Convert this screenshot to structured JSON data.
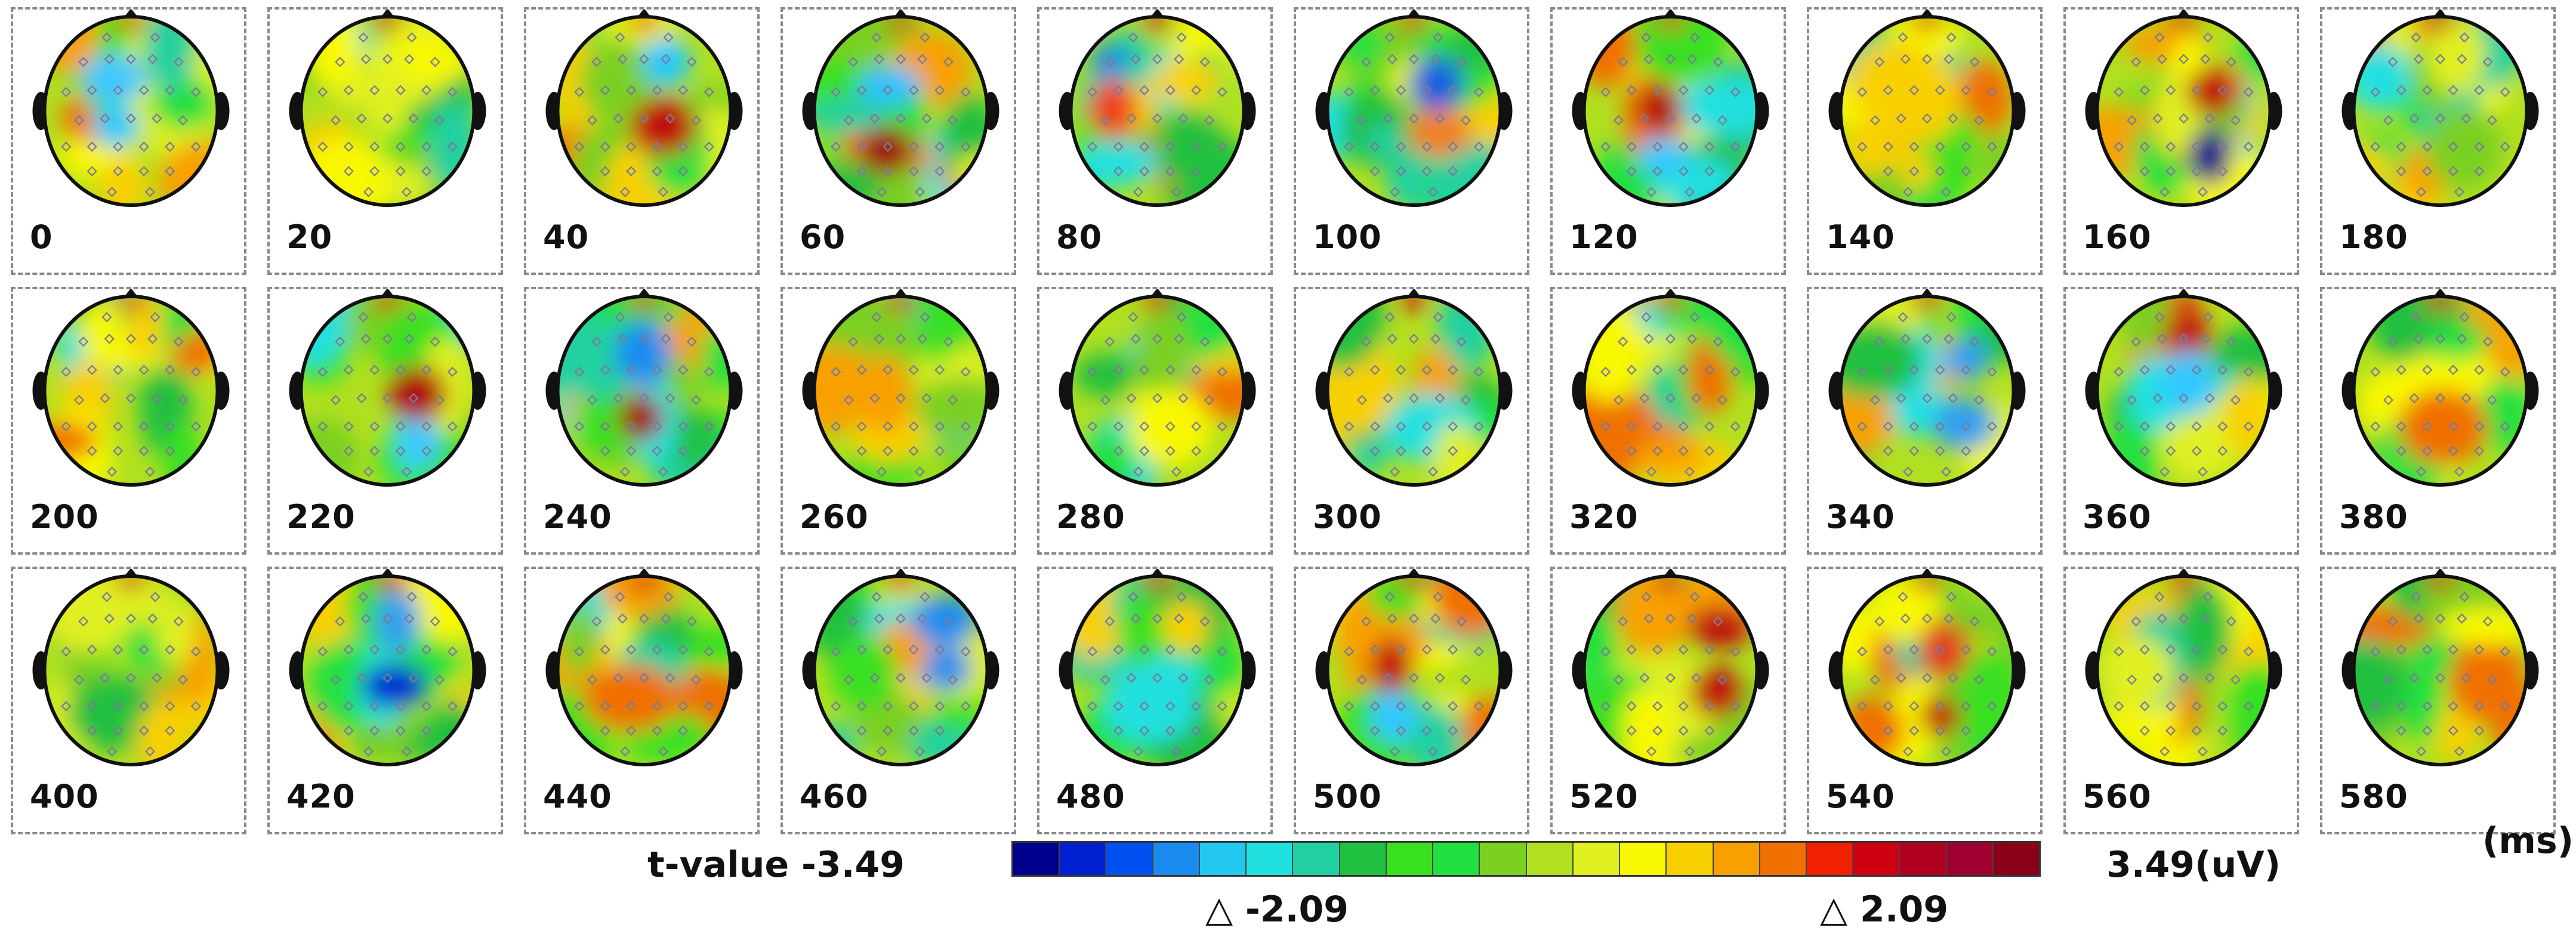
{
  "colors": {
    "background": "#ffffff",
    "head_outline": "#111111",
    "electrode_marker": "#7a7a9a",
    "significant_marker": "#ffffff",
    "colormap": [
      "#00008f",
      "#0020d0",
      "#0050f0",
      "#1a8cf0",
      "#22c8f0",
      "#20e0e0",
      "#20d0a0",
      "#20c040",
      "#38e020",
      "#20e040",
      "#7ad020",
      "#b0e020",
      "#e0f020",
      "#f8f800",
      "#f8d000",
      "#f8a000",
      "#f07000",
      "#f02000",
      "#d00010",
      "#b00020",
      "#a00030",
      "#8a0018"
    ]
  },
  "units": {
    "time_unit": "(ms)"
  },
  "colorbar": {
    "title": "t-value -3.49",
    "max_label": "3.49(uV)",
    "neg_threshold_label": "△ -2.09",
    "pos_threshold_label": "△ 2.09"
  },
  "timepoints": [
    {
      "label": "0"
    },
    {
      "label": "20"
    },
    {
      "label": "40"
    },
    {
      "label": "60"
    },
    {
      "label": "80"
    },
    {
      "label": "100"
    },
    {
      "label": "120"
    },
    {
      "label": "140"
    },
    {
      "label": "160"
    },
    {
      "label": "180"
    },
    {
      "label": "200"
    },
    {
      "label": "220"
    },
    {
      "label": "240"
    },
    {
      "label": "260"
    },
    {
      "label": "280"
    },
    {
      "label": "300"
    },
    {
      "label": "320"
    },
    {
      "label": "340"
    },
    {
      "label": "360"
    },
    {
      "label": "380"
    },
    {
      "label": "400"
    },
    {
      "label": "420"
    },
    {
      "label": "440"
    },
    {
      "label": "460"
    },
    {
      "label": "480"
    },
    {
      "label": "500"
    },
    {
      "label": "520"
    },
    {
      "label": "540"
    },
    {
      "label": "560"
    },
    {
      "label": "580"
    }
  ],
  "topomap_features": {
    "0": [
      [
        "#40c8ff",
        "hotspot-a"
      ],
      [
        "#20c8ff",
        "hotspot-b"
      ]
    ],
    "40": [
      [
        "#c01010",
        "hotspot-a"
      ],
      [
        "#20c8ff",
        "hotspot-b"
      ]
    ],
    "60": [
      [
        "#a00010",
        "hotspot-a"
      ],
      [
        "#30c0ff",
        "hotspot-b"
      ]
    ],
    "80": [
      [
        "#2090e0",
        "hotspot-a"
      ],
      [
        "#f04020",
        "hotspot-b"
      ]
    ],
    "100": [
      [
        "#1860e0",
        "hotspot-a"
      ],
      [
        "#f08020",
        "hotspot-b"
      ]
    ],
    "120": [
      [
        "#b00010",
        "hotspot-a"
      ],
      [
        "#30c8ff",
        "hotspot-b"
      ]
    ],
    "160": [
      [
        "#00008f",
        "hotspot-a"
      ],
      [
        "#c01010",
        "hotspot-b"
      ]
    ],
    "220": [
      [
        "#b00010",
        "hotspot-a"
      ],
      [
        "#40c8ff",
        "hotspot-b"
      ]
    ],
    "240": [
      [
        "#a00010",
        "hotspot-a"
      ],
      [
        "#1a8cf0",
        "hotspot-b"
      ]
    ],
    "340": [
      [
        "#30a0f0",
        "hotspot-a"
      ],
      [
        "#30a0f0",
        "hotspot-b"
      ]
    ],
    "360": [
      [
        "#c01010",
        "hotspot-a"
      ],
      [
        "#30c8ff",
        "hotspot-b"
      ]
    ],
    "420": [
      [
        "#0020d0",
        "hotspot-a"
      ],
      [
        "#30a0f0",
        "hotspot-b"
      ]
    ],
    "460": [
      [
        "#1a8cf0",
        "hotspot-a"
      ],
      [
        "#1a8cf0",
        "hotspot-b"
      ]
    ],
    "500": [
      [
        "#c01010",
        "hotspot-a"
      ],
      [
        "#30c8ff",
        "hotspot-b"
      ]
    ],
    "520": [
      [
        "#c01010",
        "hotspot-a"
      ],
      [
        "#c01010",
        "hotspot-b"
      ]
    ],
    "540": [
      [
        "#c01010",
        "hotspot-a"
      ],
      [
        "#e04020",
        "hotspot-b"
      ]
    ]
  }
}
